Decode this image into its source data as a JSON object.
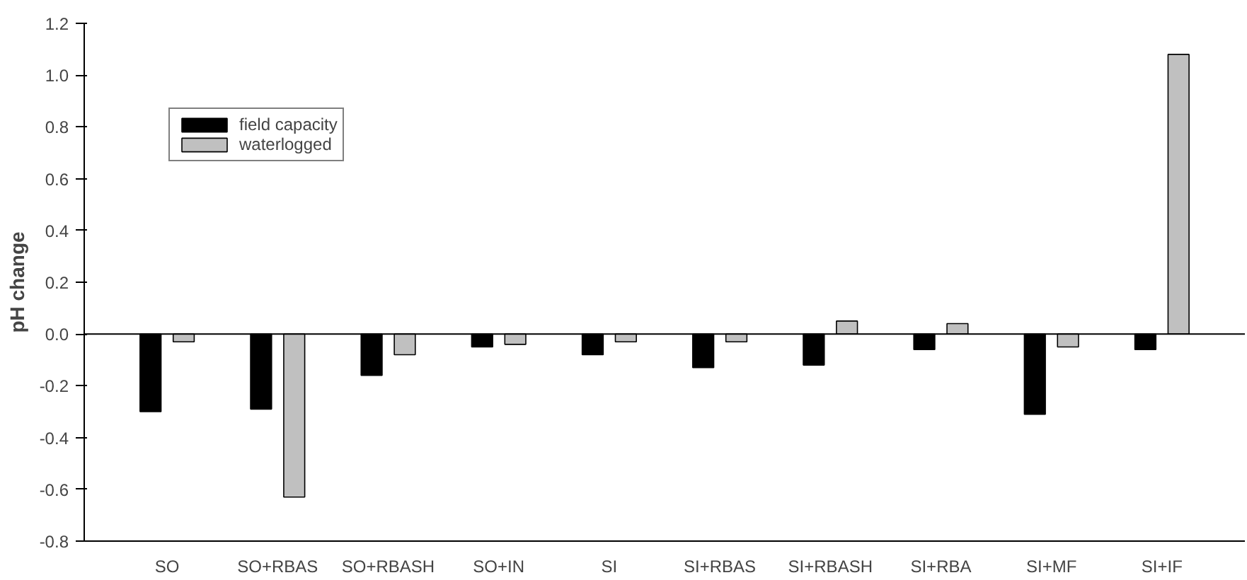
{
  "chart_data": {
    "type": "bar",
    "ylabel": "pH change",
    "categories": [
      "SO",
      "SO+RBAS",
      "SO+RBASH",
      "SO+IN",
      "SI",
      "SI+RBAS",
      "SI+RBASH",
      "SI+RBA",
      "SI+MF",
      "SI+IF"
    ],
    "series": [
      {
        "name": "field capacity",
        "color": "#000000",
        "values": [
          -0.3,
          -0.29,
          -0.16,
          -0.05,
          -0.08,
          -0.13,
          -0.12,
          -0.06,
          -0.31,
          -0.06
        ]
      },
      {
        "name": "waterlogged",
        "color": "#c0c0c0",
        "values": [
          -0.03,
          -0.63,
          -0.08,
          -0.04,
          -0.03,
          -0.03,
          0.05,
          0.04,
          -0.05,
          1.08
        ]
      }
    ],
    "ylim": [
      -0.8,
      1.2
    ],
    "yticks": [
      {
        "value": -0.8,
        "label": "-0.8"
      },
      {
        "value": -0.6,
        "label": "-0.6"
      },
      {
        "value": -0.4,
        "label": "-0.4"
      },
      {
        "value": -0.2,
        "label": "-0.2"
      },
      {
        "value": 0,
        "label": "0.0"
      },
      {
        "value": 0.2,
        "label": "0.2"
      },
      {
        "value": 0.4,
        "label": "0.4"
      },
      {
        "value": 0.6,
        "label": "0.6"
      },
      {
        "value": 0.8,
        "label": "0.8"
      },
      {
        "value": 1,
        "label": "1.0"
      },
      {
        "value": 1.2,
        "label": "1.2"
      }
    ],
    "grid": false,
    "ref_lines": [
      {
        "axis": "y",
        "value": 0,
        "color": "#000000"
      }
    ],
    "legend": "top left"
  }
}
